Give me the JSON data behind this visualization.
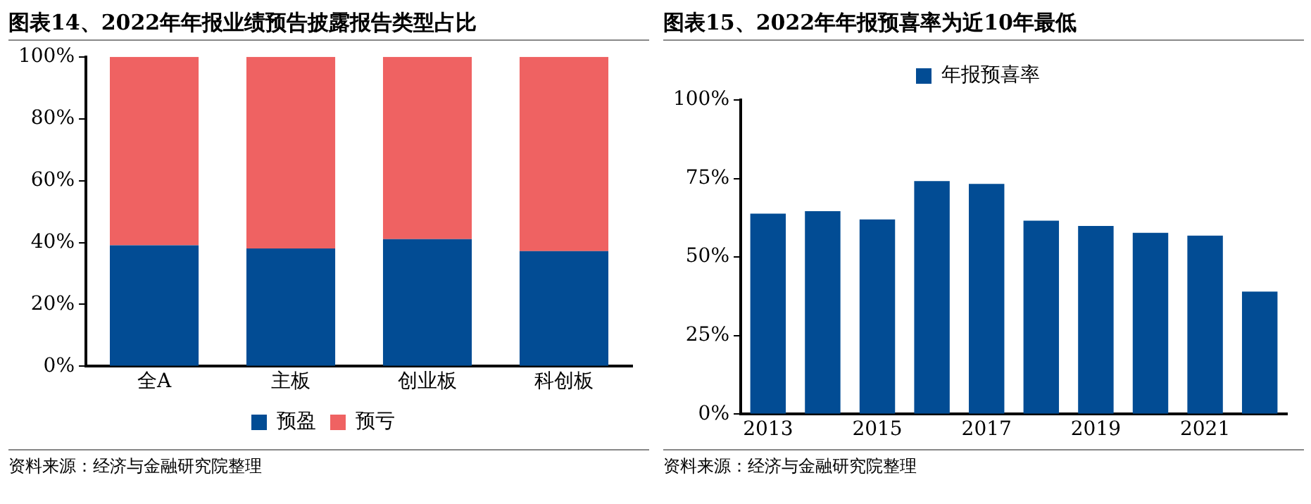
{
  "chart_data": [
    {
      "type": "bar",
      "title": "图表14、2022年年报业绩预告披露报告类型占比",
      "categories": [
        "全A",
        "主板",
        "创业板",
        "科创板"
      ],
      "stacked": true,
      "series": [
        {
          "name": "预盈",
          "color": "#024c94",
          "values": [
            39.1,
            38.1,
            41.1,
            37.2
          ]
        },
        {
          "name": "预亏",
          "color": "#ef6262",
          "values": [
            60.9,
            61.9,
            58.9,
            62.8
          ]
        }
      ],
      "ylim": [
        0,
        100
      ],
      "yticks": [
        {
          "value": 0,
          "label": "0%"
        },
        {
          "value": 20,
          "label": "20%"
        },
        {
          "value": 40,
          "label": "40%"
        },
        {
          "value": 60,
          "label": "60%"
        },
        {
          "value": 80,
          "label": "80%"
        },
        {
          "value": 100,
          "label": "100%"
        }
      ],
      "grid": false,
      "legend": "bottom",
      "annotations": [
        "资料来源：经济与金融研究院整理"
      ]
    },
    {
      "type": "bar",
      "title": "图表15、2022年年报预喜率为近10年最低",
      "categories": [
        "2013",
        null,
        "2015",
        null,
        "2017",
        null,
        "2019",
        null,
        "2021",
        null
      ],
      "series": [
        {
          "name": "年报预喜率",
          "color": "#024c94",
          "values": [
            63.8,
            64.6,
            62.0,
            74.2,
            73.3,
            61.6,
            59.9,
            57.7,
            56.8,
            39.0
          ]
        }
      ],
      "ylim": [
        0,
        100
      ],
      "yticks": [
        {
          "value": 0,
          "label": "0%"
        },
        {
          "value": 25,
          "label": "25%"
        },
        {
          "value": 50,
          "label": "50%"
        },
        {
          "value": 75,
          "label": "75%"
        },
        {
          "value": 100,
          "label": "100%"
        }
      ],
      "grid": false,
      "legend": "top",
      "annotations": [
        "资料来源：经济与金融研究院整理"
      ]
    }
  ]
}
